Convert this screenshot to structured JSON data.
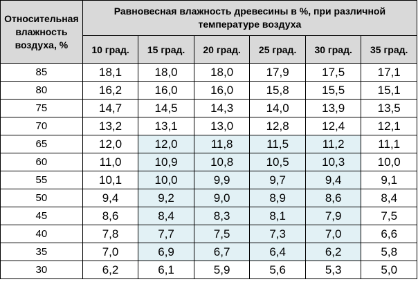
{
  "table": {
    "corner_header": "Относительная влажность воздуха, %",
    "group_header": "Равновесная влажность древесины в %, при различной температуре воздуха",
    "columns": [
      "10 град.",
      "15 град.",
      "20 град.",
      "25 град.",
      "30 град.",
      "35 град."
    ],
    "rows": [
      {
        "humidity": "85",
        "values": [
          "18,1",
          "18,0",
          "18,0",
          "17,9",
          "17,5",
          "17,1"
        ]
      },
      {
        "humidity": "80",
        "values": [
          "16,2",
          "16,0",
          "16,0",
          "15,8",
          "15,5",
          "15,1"
        ]
      },
      {
        "humidity": "75",
        "values": [
          "14,7",
          "14,5",
          "14,3",
          "14,0",
          "13,9",
          "13,5"
        ]
      },
      {
        "humidity": "70",
        "values": [
          "13,2",
          "13,1",
          "13,0",
          "12,8",
          "12,4",
          "12,1"
        ]
      },
      {
        "humidity": "65",
        "values": [
          "12,0",
          "12,0",
          "11,8",
          "11,5",
          "11,2",
          "11,1"
        ]
      },
      {
        "humidity": "60",
        "values": [
          "11,0",
          "10,9",
          "10,8",
          "10,5",
          "10,3",
          "10,0"
        ]
      },
      {
        "humidity": "55",
        "values": [
          "10,1",
          "10,0",
          "9,9",
          "9,7",
          "9,4",
          "9,1"
        ]
      },
      {
        "humidity": "50",
        "values": [
          "9,4",
          "9,2",
          "9,0",
          "8,9",
          "8,6",
          "8,4"
        ]
      },
      {
        "humidity": "45",
        "values": [
          "8,6",
          "8,4",
          "8,3",
          "8,1",
          "7,9",
          "7,5"
        ]
      },
      {
        "humidity": "40",
        "values": [
          "7,8",
          "7,7",
          "7,5",
          "7,3",
          "7,0",
          "6,6"
        ]
      },
      {
        "humidity": "35",
        "values": [
          "7,0",
          "6,9",
          "6,7",
          "6,4",
          "6,2",
          "5,8"
        ]
      },
      {
        "humidity": "30",
        "values": [
          "6,2",
          "6,1",
          "5,9",
          "5,6",
          "5,3",
          "5,0"
        ]
      }
    ],
    "highlight": {
      "first_row": 4,
      "last_row": 10,
      "first_col": 1,
      "last_col": 4,
      "fill": "#e2f1f5",
      "border": "#5b8c9c"
    },
    "header_fill": "#d9d9d9"
  }
}
